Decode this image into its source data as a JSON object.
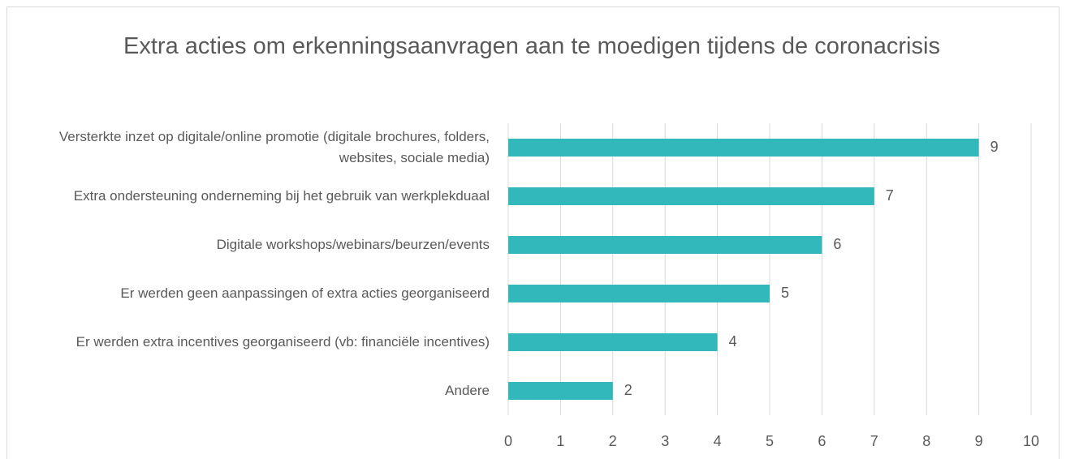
{
  "chart_data": {
    "type": "bar",
    "orientation": "horizontal",
    "title": "Extra acties om erkenningsaanvragen aan te moedigen tijdens de coronacrisis",
    "categories": [
      "Versterkte inzet op digitale/online promotie (digitale brochures, folders, websites, sociale media)",
      "Extra ondersteuning onderneming bij het gebruik van werkplekduaal",
      "Digitale workshops/webinars/beurzen/events",
      "Er werden geen aanpassingen of extra acties georganiseerd",
      "Er werden extra incentives georganiseerd (vb: financiële incentives)",
      "Andere"
    ],
    "values": [
      9,
      7,
      6,
      5,
      4,
      2
    ],
    "color": "#32b8bb",
    "xlim": [
      0,
      10
    ],
    "xticks": [
      0,
      1,
      2,
      3,
      4,
      5,
      6,
      7,
      8,
      9,
      10
    ],
    "grid": true
  }
}
